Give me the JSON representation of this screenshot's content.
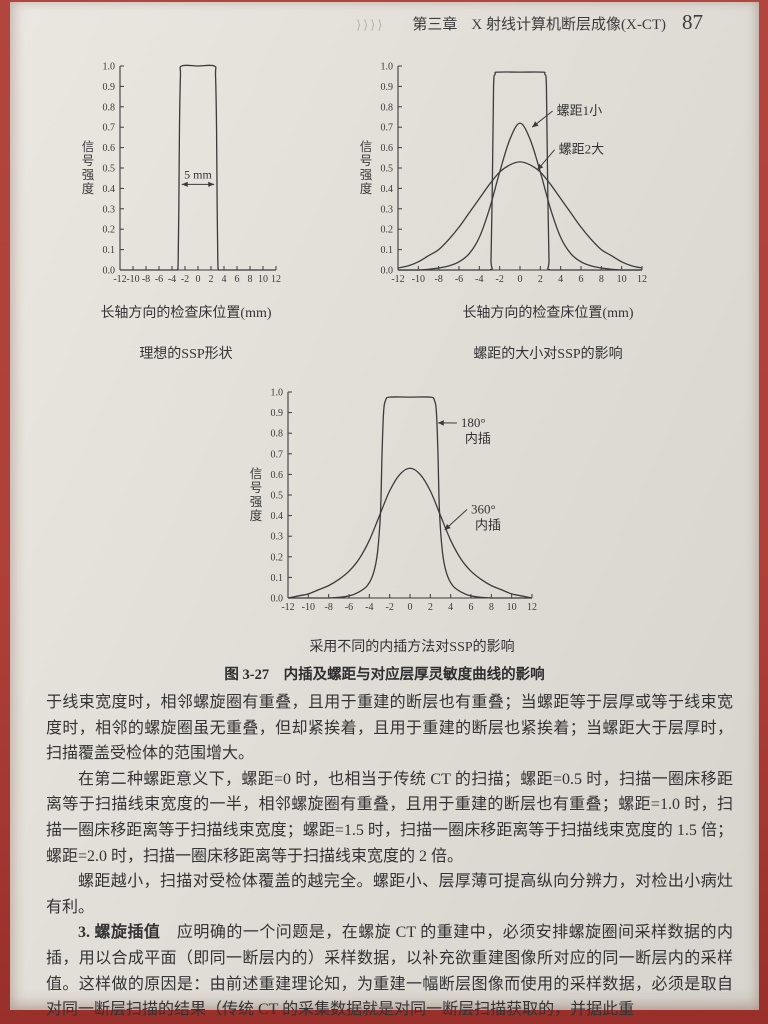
{
  "header": {
    "marks": "⟩⟩⟩⟩",
    "chapter": "第三章",
    "title": "X 射线计算机断层成像(X-CT)",
    "page_number": "87"
  },
  "figure": {
    "caption": "图 3-27　内插及螺距与对应层厚灵敏度曲线的影响"
  },
  "chart_data": [
    {
      "type": "line",
      "title": "理想的SSP形状",
      "xlabel": "长轴方向的检查床位置(mm)",
      "ylabel": "信号强度",
      "xlim": [
        -12,
        12
      ],
      "ylim": [
        0,
        1
      ],
      "xticks": [
        -12,
        -10,
        -8,
        -6,
        -4,
        -2,
        0,
        2,
        4,
        6,
        8,
        10,
        12
      ],
      "yticks": [
        0,
        0.1,
        0.2,
        0.3,
        0.4,
        0.5,
        0.6,
        0.7,
        0.8,
        0.9,
        1.0
      ],
      "legend": false,
      "grid": false,
      "series": [
        {
          "name": "理想SSP",
          "points": [
            [
              -12,
              0
            ],
            [
              -8,
              0
            ],
            [
              -4,
              0
            ],
            [
              -3.2,
              0
            ],
            [
              -3.05,
              0.04
            ],
            [
              -2.95,
              0.3
            ],
            [
              -2.85,
              0.7
            ],
            [
              -2.7,
              0.95
            ],
            [
              -2.5,
              1
            ],
            [
              0,
              1
            ],
            [
              2.5,
              1
            ],
            [
              2.7,
              0.95
            ],
            [
              2.85,
              0.7
            ],
            [
              2.95,
              0.3
            ],
            [
              3.05,
              0.04
            ],
            [
              3.2,
              0
            ],
            [
              4,
              0
            ],
            [
              8,
              0
            ],
            [
              12,
              0
            ]
          ]
        }
      ],
      "span_annotation": {
        "text": "5 mm",
        "x1": -2.5,
        "x2": 2.5,
        "y": 0.42
      }
    },
    {
      "type": "line",
      "title": "螺距的大小对SSP的影响",
      "xlabel": "长轴方向的检查床位置(mm)",
      "ylabel": "信号强度",
      "xlim": [
        -12,
        12
      ],
      "ylim": [
        0,
        1
      ],
      "xticks": [
        -12,
        -10,
        -8,
        -6,
        -4,
        -2,
        0,
        2,
        4,
        6,
        8,
        10,
        12
      ],
      "yticks": [
        0,
        0.1,
        0.2,
        0.3,
        0.4,
        0.5,
        0.6,
        0.7,
        0.8,
        0.9,
        1.0
      ],
      "legend": false,
      "grid": false,
      "series": [
        {
          "name": "理想SSP",
          "points": [
            [
              -12,
              0
            ],
            [
              -6,
              0
            ],
            [
              -3,
              0
            ],
            [
              -2.85,
              0.05
            ],
            [
              -2.7,
              0.5
            ],
            [
              -2.6,
              0.9
            ],
            [
              -2.45,
              0.96
            ],
            [
              -2.2,
              0.97
            ],
            [
              0,
              0.97
            ],
            [
              2.2,
              0.97
            ],
            [
              2.45,
              0.96
            ],
            [
              2.6,
              0.9
            ],
            [
              2.7,
              0.5
            ],
            [
              2.85,
              0.05
            ],
            [
              3,
              0
            ],
            [
              6,
              0
            ],
            [
              12,
              0
            ]
          ]
        },
        {
          "name": "螺距1小",
          "points": [
            [
              -12,
              0
            ],
            [
              -10,
              0
            ],
            [
              -8,
              0.01
            ],
            [
              -7,
              0.02
            ],
            [
              -6,
              0.04
            ],
            [
              -5,
              0.08
            ],
            [
              -4,
              0.16
            ],
            [
              -3,
              0.3
            ],
            [
              -2,
              0.48
            ],
            [
              -1,
              0.64
            ],
            [
              0,
              0.72
            ],
            [
              1,
              0.64
            ],
            [
              2,
              0.48
            ],
            [
              3,
              0.3
            ],
            [
              4,
              0.16
            ],
            [
              5,
              0.08
            ],
            [
              6,
              0.04
            ],
            [
              7,
              0.02
            ],
            [
              8,
              0.01
            ],
            [
              10,
              0
            ],
            [
              12,
              0
            ]
          ]
        },
        {
          "name": "螺距2大",
          "points": [
            [
              -12,
              0.01
            ],
            [
              -11,
              0.02
            ],
            [
              -10,
              0.04
            ],
            [
              -9,
              0.07
            ],
            [
              -8,
              0.1
            ],
            [
              -7,
              0.15
            ],
            [
              -6,
              0.21
            ],
            [
              -5,
              0.28
            ],
            [
              -4,
              0.35
            ],
            [
              -3,
              0.42
            ],
            [
              -2,
              0.48
            ],
            [
              -1,
              0.515
            ],
            [
              0,
              0.53
            ],
            [
              1,
              0.515
            ],
            [
              2,
              0.48
            ],
            [
              3,
              0.42
            ],
            [
              4,
              0.35
            ],
            [
              5,
              0.28
            ],
            [
              6,
              0.21
            ],
            [
              7,
              0.15
            ],
            [
              8,
              0.1
            ],
            [
              9,
              0.07
            ],
            [
              10,
              0.04
            ],
            [
              11,
              0.02
            ],
            [
              12,
              0.01
            ]
          ]
        }
      ],
      "annotations": [
        {
          "text": "螺距1小",
          "tx": 3.6,
          "ty": 0.76,
          "ax": 1.2,
          "ay": 0.7
        },
        {
          "text": "螺距2大",
          "tx": 3.8,
          "ty": 0.57,
          "ax": 1.7,
          "ay": 0.49
        }
      ]
    },
    {
      "type": "line",
      "title": "采用不同的内插方法对SSP的影响",
      "ylabel": "信号强度",
      "xlim": [
        -12,
        12
      ],
      "ylim": [
        0,
        1
      ],
      "xticks": [
        -12,
        -10,
        -8,
        -6,
        -4,
        -2,
        0,
        2,
        4,
        6,
        8,
        10,
        12
      ],
      "yticks": [
        0,
        0.1,
        0.2,
        0.3,
        0.4,
        0.5,
        0.6,
        0.7,
        0.8,
        0.9,
        1.0
      ],
      "legend": false,
      "grid": false,
      "series": [
        {
          "name": "180°内插",
          "points": [
            [
              -12,
              0
            ],
            [
              -8,
              0
            ],
            [
              -6,
              0.01
            ],
            [
              -5,
              0.03
            ],
            [
              -4.2,
              0.06
            ],
            [
              -3.6,
              0.12
            ],
            [
              -3.2,
              0.22
            ],
            [
              -2.9,
              0.42
            ],
            [
              -2.75,
              0.7
            ],
            [
              -2.6,
              0.9
            ],
            [
              -2.4,
              0.96
            ],
            [
              -2,
              0.975
            ],
            [
              0,
              0.975
            ],
            [
              2,
              0.975
            ],
            [
              2.4,
              0.96
            ],
            [
              2.6,
              0.9
            ],
            [
              2.75,
              0.7
            ],
            [
              2.9,
              0.42
            ],
            [
              3.2,
              0.22
            ],
            [
              3.6,
              0.12
            ],
            [
              4.2,
              0.06
            ],
            [
              5,
              0.03
            ],
            [
              6,
              0.01
            ],
            [
              8,
              0
            ],
            [
              12,
              0
            ]
          ]
        },
        {
          "name": "360°内插",
          "points": [
            [
              -12,
              0
            ],
            [
              -11,
              0.01
            ],
            [
              -10,
              0.02
            ],
            [
              -9,
              0.04
            ],
            [
              -8,
              0.06
            ],
            [
              -7,
              0.09
            ],
            [
              -6,
              0.13
            ],
            [
              -5,
              0.19
            ],
            [
              -4,
              0.28
            ],
            [
              -3,
              0.4
            ],
            [
              -2,
              0.52
            ],
            [
              -1,
              0.6
            ],
            [
              0,
              0.63
            ],
            [
              1,
              0.6
            ],
            [
              2,
              0.52
            ],
            [
              3,
              0.4
            ],
            [
              4,
              0.28
            ],
            [
              5,
              0.19
            ],
            [
              6,
              0.13
            ],
            [
              7,
              0.09
            ],
            [
              8,
              0.06
            ],
            [
              9,
              0.04
            ],
            [
              10,
              0.02
            ],
            [
              11,
              0.01
            ],
            [
              12,
              0
            ]
          ]
        }
      ],
      "annotations": [
        {
          "text": "180°\n内插",
          "tx": 5.0,
          "ty": 0.83,
          "ax": 2.75,
          "ay": 0.85
        },
        {
          "text": "360°\n内插",
          "tx": 6.0,
          "ty": 0.41,
          "ax": 3.4,
          "ay": 0.33
        }
      ]
    }
  ],
  "body": {
    "paragraphs": [
      {
        "indent": false,
        "segments": [
          {
            "text": "于线束宽度时，相邻螺旋圈有重叠，且用于重建的断层也有重叠；当螺距等于层厚或等于线束宽度时，相邻的螺旋圈虽无重叠，但却紧挨着，且用于重建的断层也紧挨着；当螺距大于层厚时，扫描覆盖受检体的范围增大。",
            "bold": false
          }
        ]
      },
      {
        "indent": true,
        "segments": [
          {
            "text": "在第二种螺距意义下，螺距=0 时，也相当于传统 CT 的扫描；螺距=0.5 时，扫描一圈床移距离等于扫描线束宽度的一半，相邻螺旋圈有重叠，且用于重建的断层也有重叠；螺距=1.0 时，扫描一圈床移距离等于扫描线束宽度；螺距=1.5 时，扫描一圈床移距离等于扫描线束宽度的 1.5 倍；螺距=2.0 时，扫描一圈床移距离等于扫描线束宽度的 2 倍。",
            "bold": false
          }
        ]
      },
      {
        "indent": true,
        "segments": [
          {
            "text": "螺距越小，扫描对受检体覆盖的越完全。螺距小、层厚薄可提高纵向分辨力，对检出小病灶有利。",
            "bold": false
          }
        ]
      },
      {
        "indent": true,
        "segments": [
          {
            "text": "3. 螺旋插值",
            "bold": true
          },
          {
            "text": "　应明确的一个问题是，在螺旋 CT 的重建中，必须安排螺旋圈间采样数据的内插，用以合成平面（即同一断层内的）采样数据，以补充欲重建图像所对应的同一断层内的采样值。这样做的原因是：由前述重建理论知，为重建一幅断层图像而使用的采样数据，必须是取自对同一断层扫描的结果（传统 CT 的采集数据就是对同一断层扫描获取的，并据此重",
            "bold": false
          }
        ]
      }
    ]
  }
}
